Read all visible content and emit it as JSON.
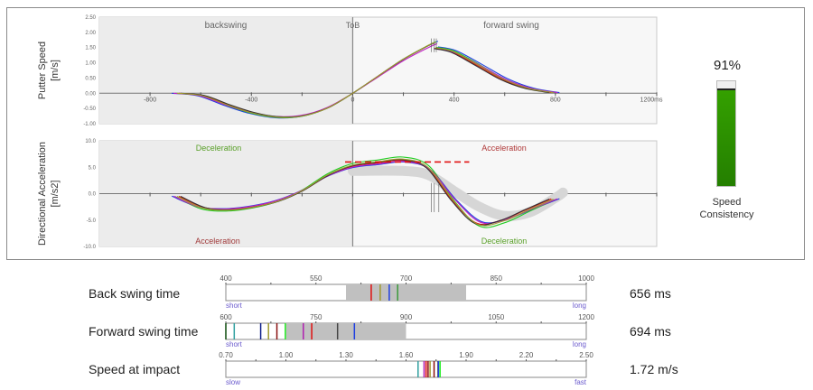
{
  "chart_data": [
    {
      "type": "line",
      "title": "",
      "ylabel": "Putter Speed [m/s]",
      "ylabel_lines": [
        "Putter Speed",
        "[m/s]"
      ],
      "xunit": "ms",
      "xlim": [
        -1000,
        1200
      ],
      "ylim": [
        -1.0,
        2.5
      ],
      "xticks": [
        "-800",
        "-400",
        "0",
        "400",
        "800",
        "1200ms"
      ],
      "xtick_values": [
        -800,
        -400,
        0,
        400,
        800,
        1200
      ],
      "yticks": [
        "2.50",
        "2.00",
        "1.50",
        "1.00",
        "0.50",
        "0.00",
        "-0.50",
        "-1.00"
      ],
      "ytick_values": [
        2.5,
        2.0,
        1.5,
        1.0,
        0.5,
        0.0,
        -0.5,
        -1.0
      ],
      "annotations": {
        "backswing": "backswing",
        "tob": "ToB",
        "forward": "forward swing"
      },
      "base_curve": [
        [
          -700,
          0
        ],
        [
          -600,
          -0.08
        ],
        [
          -500,
          -0.38
        ],
        [
          -400,
          -0.64
        ],
        [
          -300,
          -0.78
        ],
        [
          -200,
          -0.74
        ],
        [
          -100,
          -0.48
        ],
        [
          0,
          0
        ],
        [
          100,
          0.55
        ],
        [
          200,
          1.1
        ],
        [
          300,
          1.55
        ],
        [
          330,
          1.66
        ]
      ],
      "post_impact_curve": [
        [
          330,
          1.48
        ],
        [
          400,
          1.36
        ],
        [
          500,
          0.92
        ],
        [
          600,
          0.46
        ],
        [
          700,
          0.16
        ],
        [
          800,
          0.02
        ]
      ],
      "series": [
        {
          "color": "#1f3fe0",
          "time_scale": 1.02,
          "amp": 1.03
        },
        {
          "color": "#e01010",
          "time_scale": 0.98,
          "amp": 1.0
        },
        {
          "color": "#22cc22",
          "time_scale": 1.0,
          "amp": 1.02
        },
        {
          "color": "#c020c0",
          "time_scale": 1.01,
          "amp": 0.98
        },
        {
          "color": "#333333",
          "time_scale": 0.97,
          "amp": 0.99
        },
        {
          "color": "#a09a30",
          "time_scale": 0.99,
          "amp": 1.01
        }
      ]
    },
    {
      "type": "line",
      "ylabel": "Directional Acceleration [m/s2]",
      "ylabel_lines": [
        "Directional Acceleration",
        "[m/s2]"
      ],
      "xlim": [
        -1000,
        1200
      ],
      "ylim": [
        -10,
        10
      ],
      "yticks": [
        "10.0",
        "5.0",
        "0.0",
        "-5.0",
        "-10.0"
      ],
      "ytick_values": [
        10,
        5,
        0,
        -5,
        -10
      ],
      "annotations": {
        "top_left": "Deceleration",
        "bottom_left": "Acceleration",
        "top_right": "Acceleration",
        "bottom_right": "Deceleration"
      },
      "target_line": {
        "value": 6.0,
        "from": -30,
        "to": 460
      },
      "ideal_band": [
        [
          0,
          4.3
        ],
        [
          200,
          4.3
        ],
        [
          300,
          3.5
        ],
        [
          400,
          0.5
        ],
        [
          500,
          -2.5
        ],
        [
          600,
          -4.2
        ],
        [
          700,
          -3.5
        ],
        [
          800,
          -0.8
        ],
        [
          830,
          0.2
        ]
      ],
      "base_curve": [
        [
          -700,
          -0.5
        ],
        [
          -600,
          -2.6
        ],
        [
          -500,
          -3.0
        ],
        [
          -400,
          -2.5
        ],
        [
          -300,
          -1.4
        ],
        [
          -200,
          0.6
        ],
        [
          -100,
          3.4
        ],
        [
          0,
          5.2
        ],
        [
          100,
          5.8
        ],
        [
          200,
          6.3
        ],
        [
          300,
          4.8
        ],
        [
          400,
          -1.2
        ],
        [
          500,
          -5.6
        ],
        [
          600,
          -5.0
        ],
        [
          700,
          -3.0
        ],
        [
          800,
          -1.0
        ]
      ],
      "series": [
        {
          "color": "#1f3fe0",
          "time_scale": 1.02,
          "amp": 0.95
        },
        {
          "color": "#e01010",
          "time_scale": 0.98,
          "amp": 1.0
        },
        {
          "color": "#22cc22",
          "time_scale": 1.0,
          "amp": 1.1
        },
        {
          "color": "#c020c0",
          "time_scale": 1.01,
          "amp": 0.97
        },
        {
          "color": "#333333",
          "time_scale": 0.97,
          "amp": 1.02
        },
        {
          "color": "#a09a30",
          "time_scale": 0.99,
          "amp": 1.04
        }
      ]
    }
  ],
  "gauge": {
    "value_label": "91%",
    "value": 0.91,
    "label_line1": "Speed",
    "label_line2": "Consistency",
    "color": "#2a8c00"
  },
  "metrics": [
    {
      "label": "Back swing time",
      "value": "656 ms",
      "range": [
        400,
        1000
      ],
      "ticks": [
        "400",
        "550",
        "700",
        "850",
        "1000"
      ],
      "tick_values": [
        400,
        550,
        700,
        850,
        1000
      ],
      "low": "short",
      "high": "long",
      "band": [
        600,
        800
      ],
      "markers": [
        {
          "v": 642,
          "c": "#e01010"
        },
        {
          "v": 657,
          "c": "#a09a30"
        },
        {
          "v": 672,
          "c": "#1f3fe0"
        },
        {
          "v": 686,
          "c": "#3a9a3a"
        }
      ]
    },
    {
      "label": "Forward swing time",
      "value": "694 ms",
      "range": [
        600,
        1200
      ],
      "ticks": [
        "600",
        "750",
        "900",
        "1050",
        "1200"
      ],
      "tick_values": [
        600,
        750,
        900,
        1050,
        1200
      ],
      "low": "short",
      "high": "long",
      "band": [
        700,
        900
      ],
      "markers": [
        {
          "v": 600,
          "c": "#0a4a0a"
        },
        {
          "v": 614,
          "c": "#30a0a0"
        },
        {
          "v": 658,
          "c": "#10208a"
        },
        {
          "v": 671,
          "c": "#a09a30"
        },
        {
          "v": 685,
          "c": "#8a1010"
        },
        {
          "v": 699,
          "c": "#22ee22"
        },
        {
          "v": 729,
          "c": "#b020b0"
        },
        {
          "v": 743,
          "c": "#e01010"
        },
        {
          "v": 786,
          "c": "#444444"
        },
        {
          "v": 814,
          "c": "#1f3fe0"
        }
      ]
    },
    {
      "label": "Speed at impact",
      "value": "1.72 m/s",
      "range": [
        0.7,
        2.5
      ],
      "ticks": [
        "0.70",
        "1.00",
        "1.30",
        "1.60",
        "1.90",
        "2.20",
        "2.50"
      ],
      "tick_values": [
        0.7,
        1.0,
        1.3,
        1.6,
        1.9,
        2.2,
        2.5
      ],
      "low": "slow",
      "high": "fast",
      "band": null,
      "markers": [
        {
          "v": 1.66,
          "c": "#30a0a0"
        },
        {
          "v": 1.69,
          "c": "#b020b0"
        },
        {
          "v": 1.7,
          "c": "#e01010"
        },
        {
          "v": 1.71,
          "c": "#8a1010"
        },
        {
          "v": 1.72,
          "c": "#a09a30"
        },
        {
          "v": 1.74,
          "c": "#8a1010"
        },
        {
          "v": 1.76,
          "c": "#222222"
        },
        {
          "v": 1.762,
          "c": "#1f3fe0"
        },
        {
          "v": 1.77,
          "c": "#22ee22"
        }
      ]
    }
  ]
}
